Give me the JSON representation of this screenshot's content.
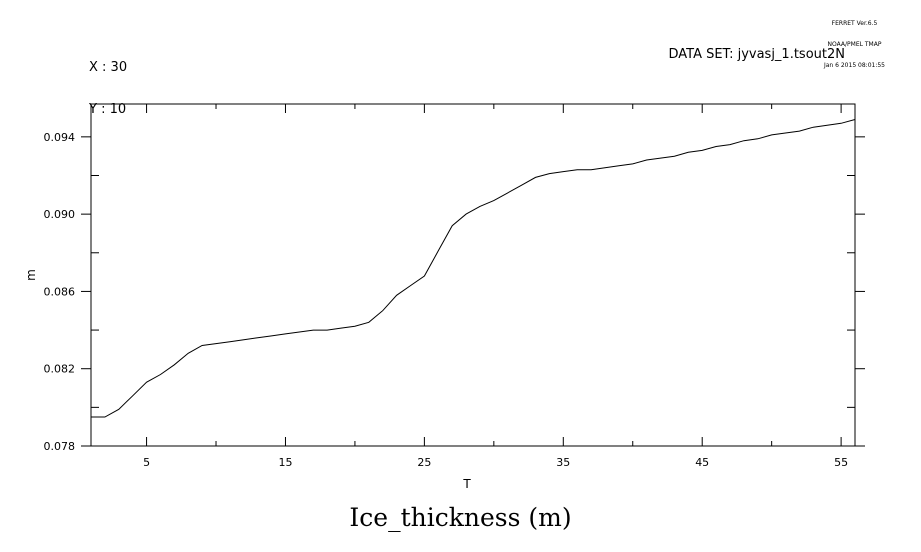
{
  "header": {
    "program_line": "FERRET Ver.6.5",
    "org_line": "NOAA/PMEL TMAP",
    "date_line": "Jan 6 2015 08:01:55",
    "x_line": "X : 30",
    "y_line": "Y : 10",
    "dataset": "DATA SET: jyvasj_1.tsout2N"
  },
  "chart_data": {
    "type": "line",
    "title": "Ice_thickness (m)",
    "xlabel": "T",
    "ylabel": "m",
    "xlim": [
      1,
      56
    ],
    "ylim": [
      0.078,
      0.0957
    ],
    "xticks_labeled": [
      5,
      15,
      25,
      35,
      45,
      55
    ],
    "xticks_minor": [
      10,
      20,
      30,
      40,
      50
    ],
    "yticks_labeled": [
      0.078,
      0.082,
      0.086,
      0.09,
      0.094
    ],
    "ytick_labels": [
      "0.078",
      "0.082",
      "0.086",
      "0.090",
      "0.094"
    ],
    "yticks_minor": [
      0.08,
      0.084,
      0.088,
      0.092
    ],
    "grid": false,
    "series": [
      {
        "x": [
          1,
          2,
          3,
          4,
          5,
          6,
          7,
          8,
          9,
          10,
          11,
          12,
          13,
          14,
          15,
          16,
          17,
          18,
          19,
          20,
          21,
          22,
          23,
          24,
          25,
          26,
          27,
          28,
          29,
          30,
          31,
          32,
          33,
          34,
          35,
          36,
          37,
          38,
          39,
          40,
          41,
          42,
          43,
          44,
          45,
          46,
          47,
          48,
          49,
          50,
          51,
          52,
          53,
          54,
          55,
          56
        ],
        "values": [
          0.0795,
          0.0795,
          0.0799,
          0.0806,
          0.0813,
          0.0817,
          0.0822,
          0.0828,
          0.0832,
          0.0833,
          0.0834,
          0.0835,
          0.0836,
          0.0837,
          0.0838,
          0.0839,
          0.084,
          0.084,
          0.0841,
          0.0842,
          0.0844,
          0.085,
          0.0858,
          0.0863,
          0.0868,
          0.0881,
          0.0894,
          0.09,
          0.0904,
          0.0907,
          0.0911,
          0.0915,
          0.0919,
          0.0921,
          0.0922,
          0.0923,
          0.0923,
          0.0924,
          0.0925,
          0.0926,
          0.0928,
          0.0929,
          0.093,
          0.0932,
          0.0933,
          0.0935,
          0.0936,
          0.0938,
          0.0939,
          0.0941,
          0.0942,
          0.0943,
          0.0945,
          0.0946,
          0.0947,
          0.0949
        ]
      }
    ]
  }
}
